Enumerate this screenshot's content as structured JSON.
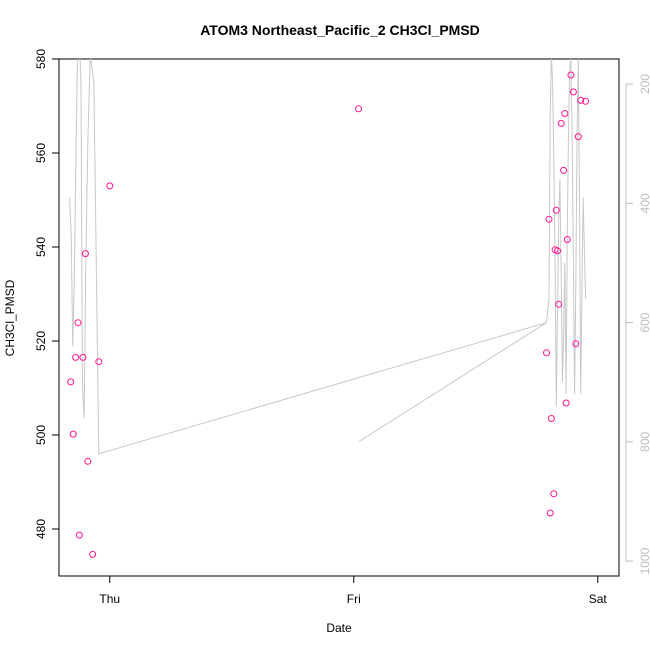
{
  "chart_data": {
    "type": "scatter",
    "title": "ATOM3 Northeast_Pacific_2 CH3Cl_PMSD",
    "xlabel": "Date",
    "ylabel": "CH3Cl_PMSD",
    "x_ticks": [
      {
        "label": "Thu",
        "value": 1.0
      },
      {
        "label": "Fri",
        "value": 2.0
      },
      {
        "label": "Sat",
        "value": 3.0
      }
    ],
    "xlim": [
      0.792,
      3.087
    ],
    "ylim": [
      470,
      580
    ],
    "y_ticks": [
      480,
      500,
      520,
      540,
      560,
      580
    ],
    "right_axis": {
      "ylim": [
        1025,
        158
      ],
      "ticks": [
        200,
        400,
        600,
        800,
        1000
      ],
      "color": "#bdbdbd"
    },
    "grid": false,
    "colors": {
      "points": "#ff1493",
      "line": "#c8c8c8"
    },
    "series": [
      {
        "type": "points",
        "x": [
          0.84,
          0.85,
          0.86,
          0.87,
          0.875,
          0.89,
          0.9,
          0.91,
          0.93,
          0.955,
          1.0,
          2.02,
          2.79,
          2.8,
          2.805,
          2.81,
          2.82,
          2.825,
          2.83,
          2.835,
          2.84,
          2.85,
          2.86,
          2.865,
          2.87,
          2.875,
          2.89,
          2.9,
          2.91,
          2.92,
          2.93,
          2.95
        ],
        "y": [
          511.3,
          500.2,
          516.5,
          523.9,
          478.7,
          516.5,
          538.6,
          494.4,
          474.6,
          515.6,
          553.0,
          569.4,
          517.5,
          545.9,
          483.4,
          503.5,
          487.5,
          539.4,
          547.8,
          539.2,
          527.8,
          566.3,
          556.3,
          568.4,
          506.8,
          541.6,
          576.6,
          573.0,
          519.4,
          563.5,
          571.2,
          571.0
        ]
      },
      {
        "type": "line",
        "x": [
          0.835,
          0.842,
          0.848,
          0.855,
          0.862,
          0.868,
          0.875,
          0.882,
          0.888,
          0.895,
          0.902,
          0.91,
          0.92,
          0.935,
          0.955,
          2.79,
          2.8,
          2.805,
          2.81,
          2.815,
          2.82,
          2.825,
          2.83,
          2.835,
          2.84,
          2.845,
          2.85,
          2.855,
          2.86,
          2.865,
          2.87,
          2.875,
          2.88,
          2.885,
          2.89,
          2.895,
          2.9,
          2.905,
          2.91,
          2.915,
          2.92,
          2.925,
          2.93,
          2.94,
          2.95
        ],
        "y": [
          390,
          450,
          640,
          520,
          300,
          150,
          120,
          200,
          700,
          760,
          500,
          300,
          150,
          200,
          820,
          600,
          560,
          250,
          150,
          200,
          320,
          500,
          740,
          580,
          430,
          360,
          520,
          700,
          620,
          500,
          720,
          440,
          280,
          180,
          150,
          300,
          500,
          720,
          540,
          300,
          150,
          400,
          720,
          390,
          560
        ],
        "z": [
          null,
          null,
          null,
          null,
          null,
          null,
          null,
          null,
          null,
          null,
          null,
          null,
          null,
          null,
          null,
          null,
          null,
          null,
          null,
          null,
          null,
          null,
          null,
          null,
          null,
          null,
          null,
          null,
          null,
          null,
          null,
          null,
          null,
          null,
          null,
          null,
          null,
          null,
          null,
          null,
          null,
          null,
          null,
          null,
          null
        ]
      },
      {
        "type": "line",
        "x": [
          2.02,
          2.79
        ],
        "y": [
          800,
          600
        ]
      }
    ]
  }
}
